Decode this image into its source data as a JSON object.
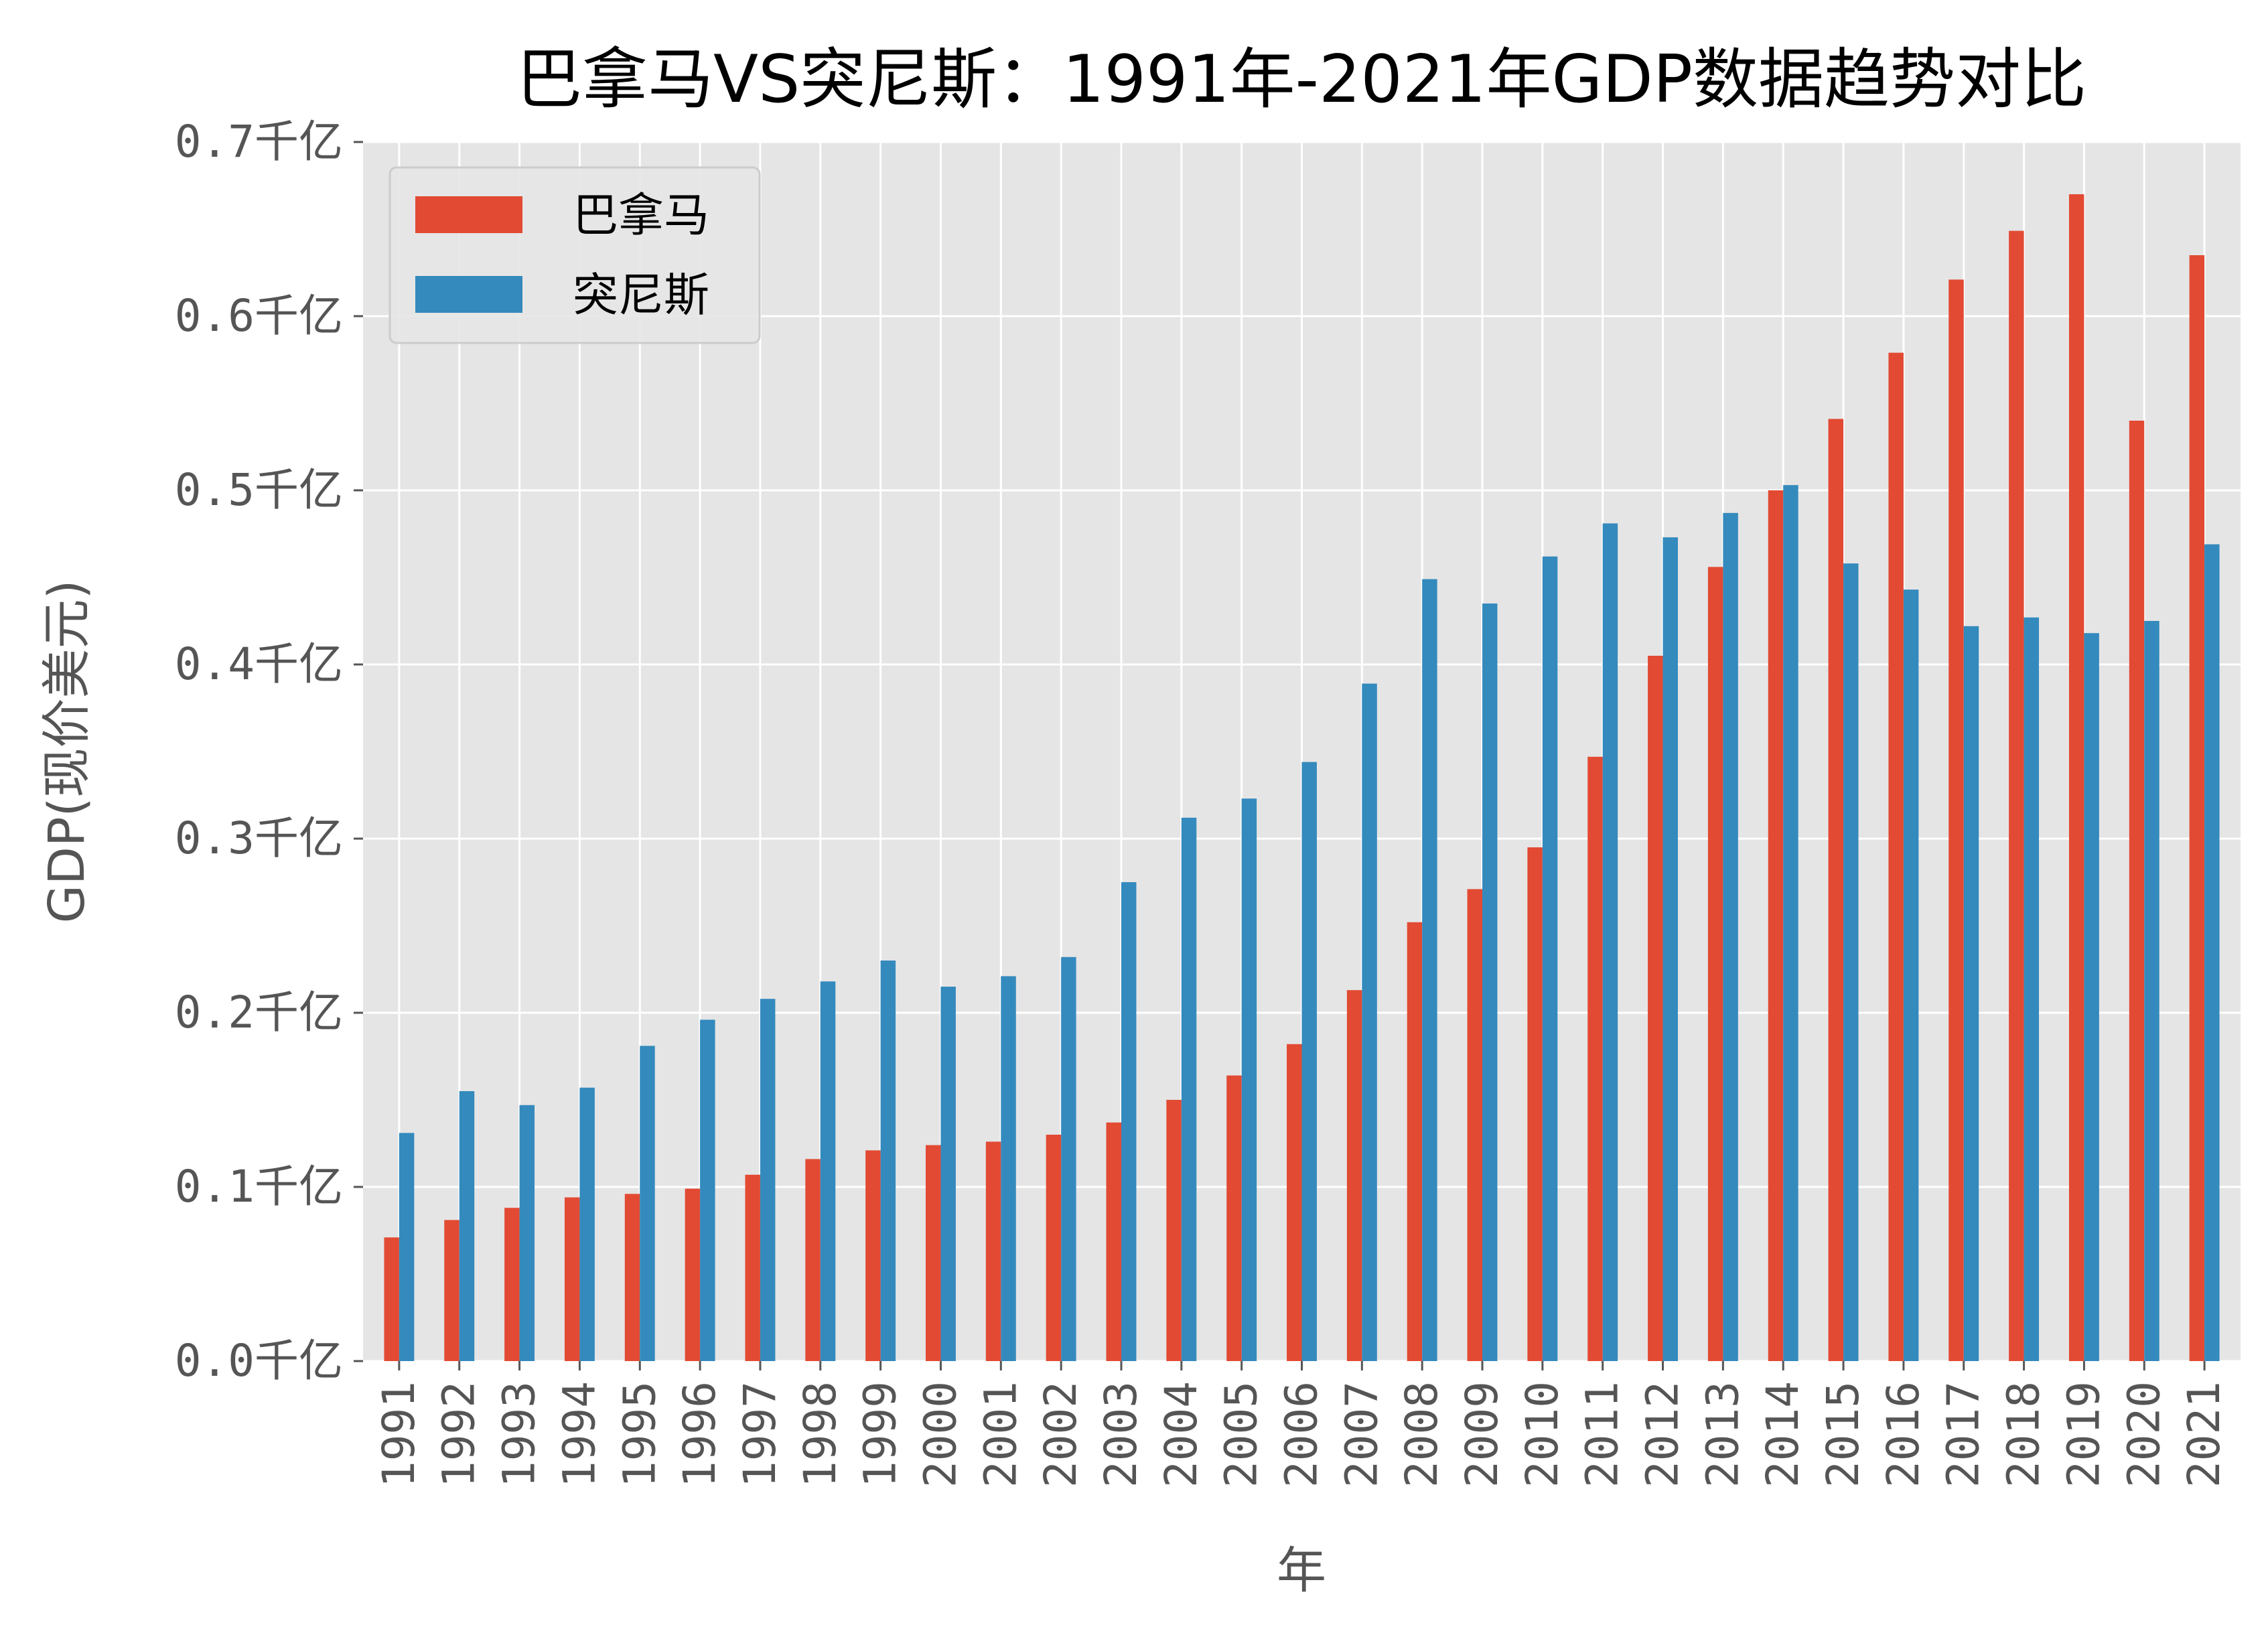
{
  "chart_data": {
    "type": "bar",
    "title": "巴拿马VS突尼斯：1991年-2021年GDP数据趋势对比",
    "xlabel": "年",
    "ylabel": "GDP(现价美元)",
    "ylim": [
      0,
      0.7
    ],
    "yticks": [
      0.0,
      0.1,
      0.2,
      0.3,
      0.4,
      0.5,
      0.6,
      0.7
    ],
    "ytick_labels": [
      "0.0千亿",
      "0.1千亿",
      "0.2千亿",
      "0.3千亿",
      "0.4千亿",
      "0.5千亿",
      "0.6千亿",
      "0.7千亿"
    ],
    "grid": true,
    "legend_position": "top-left",
    "background_color": "#e5e5e5",
    "categories": [
      "1991",
      "1992",
      "1993",
      "1994",
      "1995",
      "1996",
      "1997",
      "1998",
      "1999",
      "2000",
      "2001",
      "2002",
      "2003",
      "2004",
      "2005",
      "2006",
      "2007",
      "2008",
      "2009",
      "2010",
      "2011",
      "2012",
      "2013",
      "2014",
      "2015",
      "2016",
      "2017",
      "2018",
      "2019",
      "2020",
      "2021"
    ],
    "series": [
      {
        "name": "巴拿马",
        "color": "#e24a33",
        "values": [
          0.071,
          0.081,
          0.088,
          0.094,
          0.096,
          0.099,
          0.107,
          0.116,
          0.121,
          0.124,
          0.126,
          0.13,
          0.137,
          0.15,
          0.164,
          0.182,
          0.213,
          0.252,
          0.271,
          0.295,
          0.347,
          0.405,
          0.456,
          0.5,
          0.541,
          0.579,
          0.621,
          0.649,
          0.67,
          0.54,
          0.635
        ]
      },
      {
        "name": "突尼斯",
        "color": "#348abd",
        "values": [
          0.131,
          0.155,
          0.147,
          0.157,
          0.181,
          0.196,
          0.208,
          0.218,
          0.23,
          0.215,
          0.221,
          0.232,
          0.275,
          0.312,
          0.323,
          0.344,
          0.389,
          0.449,
          0.435,
          0.462,
          0.481,
          0.473,
          0.487,
          0.503,
          0.458,
          0.443,
          0.422,
          0.427,
          0.418,
          0.425,
          0.469
        ]
      }
    ]
  }
}
